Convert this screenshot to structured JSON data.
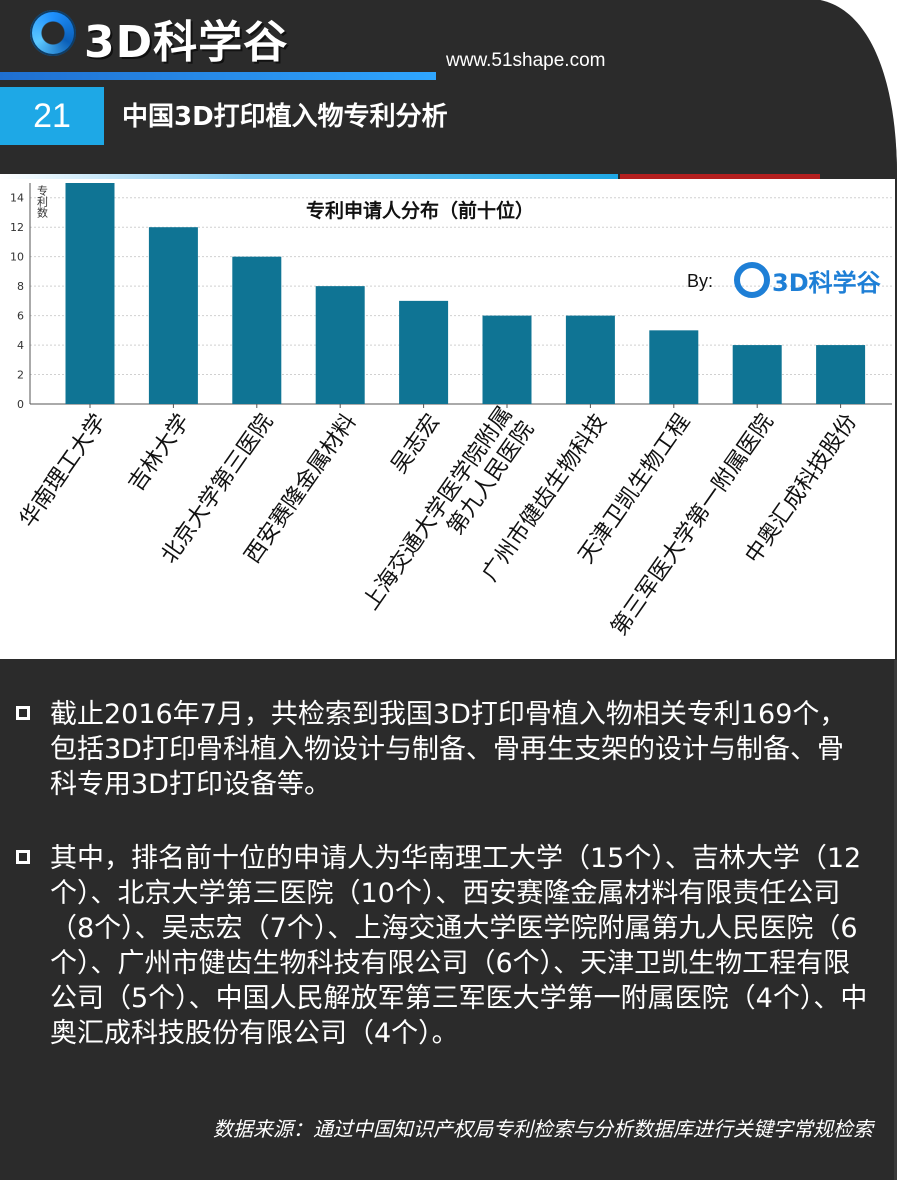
{
  "brand": {
    "logo_text": "3D科学谷",
    "site_url": "www.51shape.com"
  },
  "section": {
    "number": "21",
    "title": "中国3D打印植入物专利分析"
  },
  "chart_data": {
    "type": "bar",
    "title": "专利申请人分布（前十位）",
    "ylabel": "专利数",
    "xlabel": "",
    "ylim": [
      0,
      15
    ],
    "yticks": [
      0,
      2,
      4,
      6,
      8,
      10,
      12,
      14
    ],
    "grid": true,
    "bar_color": "#0f7494",
    "categories": [
      "华南理工大学",
      "吉林大学",
      "北京大学第三医院",
      "西安赛隆金属材料",
      "吴志宏",
      "上海交通大学医学院附属第九人民医院",
      "广州市健齿生物科技",
      "天津卫凯生物工程",
      "第三军医大学第一附属医院",
      "中奥汇成科技股份"
    ],
    "category_lines": [
      [
        "华南理工大学"
      ],
      [
        "吉林大学"
      ],
      [
        "北京大学第三医院"
      ],
      [
        "西安赛隆金属材料"
      ],
      [
        "吴志宏"
      ],
      [
        "上海交通大学医学院附属",
        "第九人民医院"
      ],
      [
        "广州市健齿生物科技"
      ],
      [
        "天津卫凯生物工程"
      ],
      [
        "第三军医大学第一附属医院"
      ],
      [
        "中奥汇成科技股份"
      ]
    ],
    "values": [
      15,
      12,
      10,
      8,
      7,
      6,
      6,
      5,
      4,
      4
    ],
    "watermark": {
      "prefix": "By:",
      "logo_text": "3D科学谷"
    }
  },
  "paragraphs": [
    "截止2016年7月，共检索到我国3D打印骨植入物相关专利169个，包括3D打印骨科植入物设计与制备、骨再生支架的设计与制备、骨科专用3D打印设备等。",
    "其中，排名前十位的申请人为华南理工大学（15个）、吉林大学（12个）、北京大学第三医院（10个）、西安赛隆金属材料有限责任公司（8个）、吴志宏（7个）、上海交通大学医学院附属第九人民医院（6个）、广州市健齿生物科技有限公司（6个）、天津卫凯生物工程有限公司（5个）、中国人民解放军第三军医大学第一附属医院（4个）、中奥汇成科技股份有限公司（4个）。"
  ],
  "source_note": "数据来源：通过中国知识产权局专利检索与分析数据库进行关键字常规检索",
  "colors": {
    "background": "#2b2b2b",
    "accent_blue": "#1ea8e6",
    "accent_red": "#b41f1f",
    "bar": "#0f7494"
  }
}
